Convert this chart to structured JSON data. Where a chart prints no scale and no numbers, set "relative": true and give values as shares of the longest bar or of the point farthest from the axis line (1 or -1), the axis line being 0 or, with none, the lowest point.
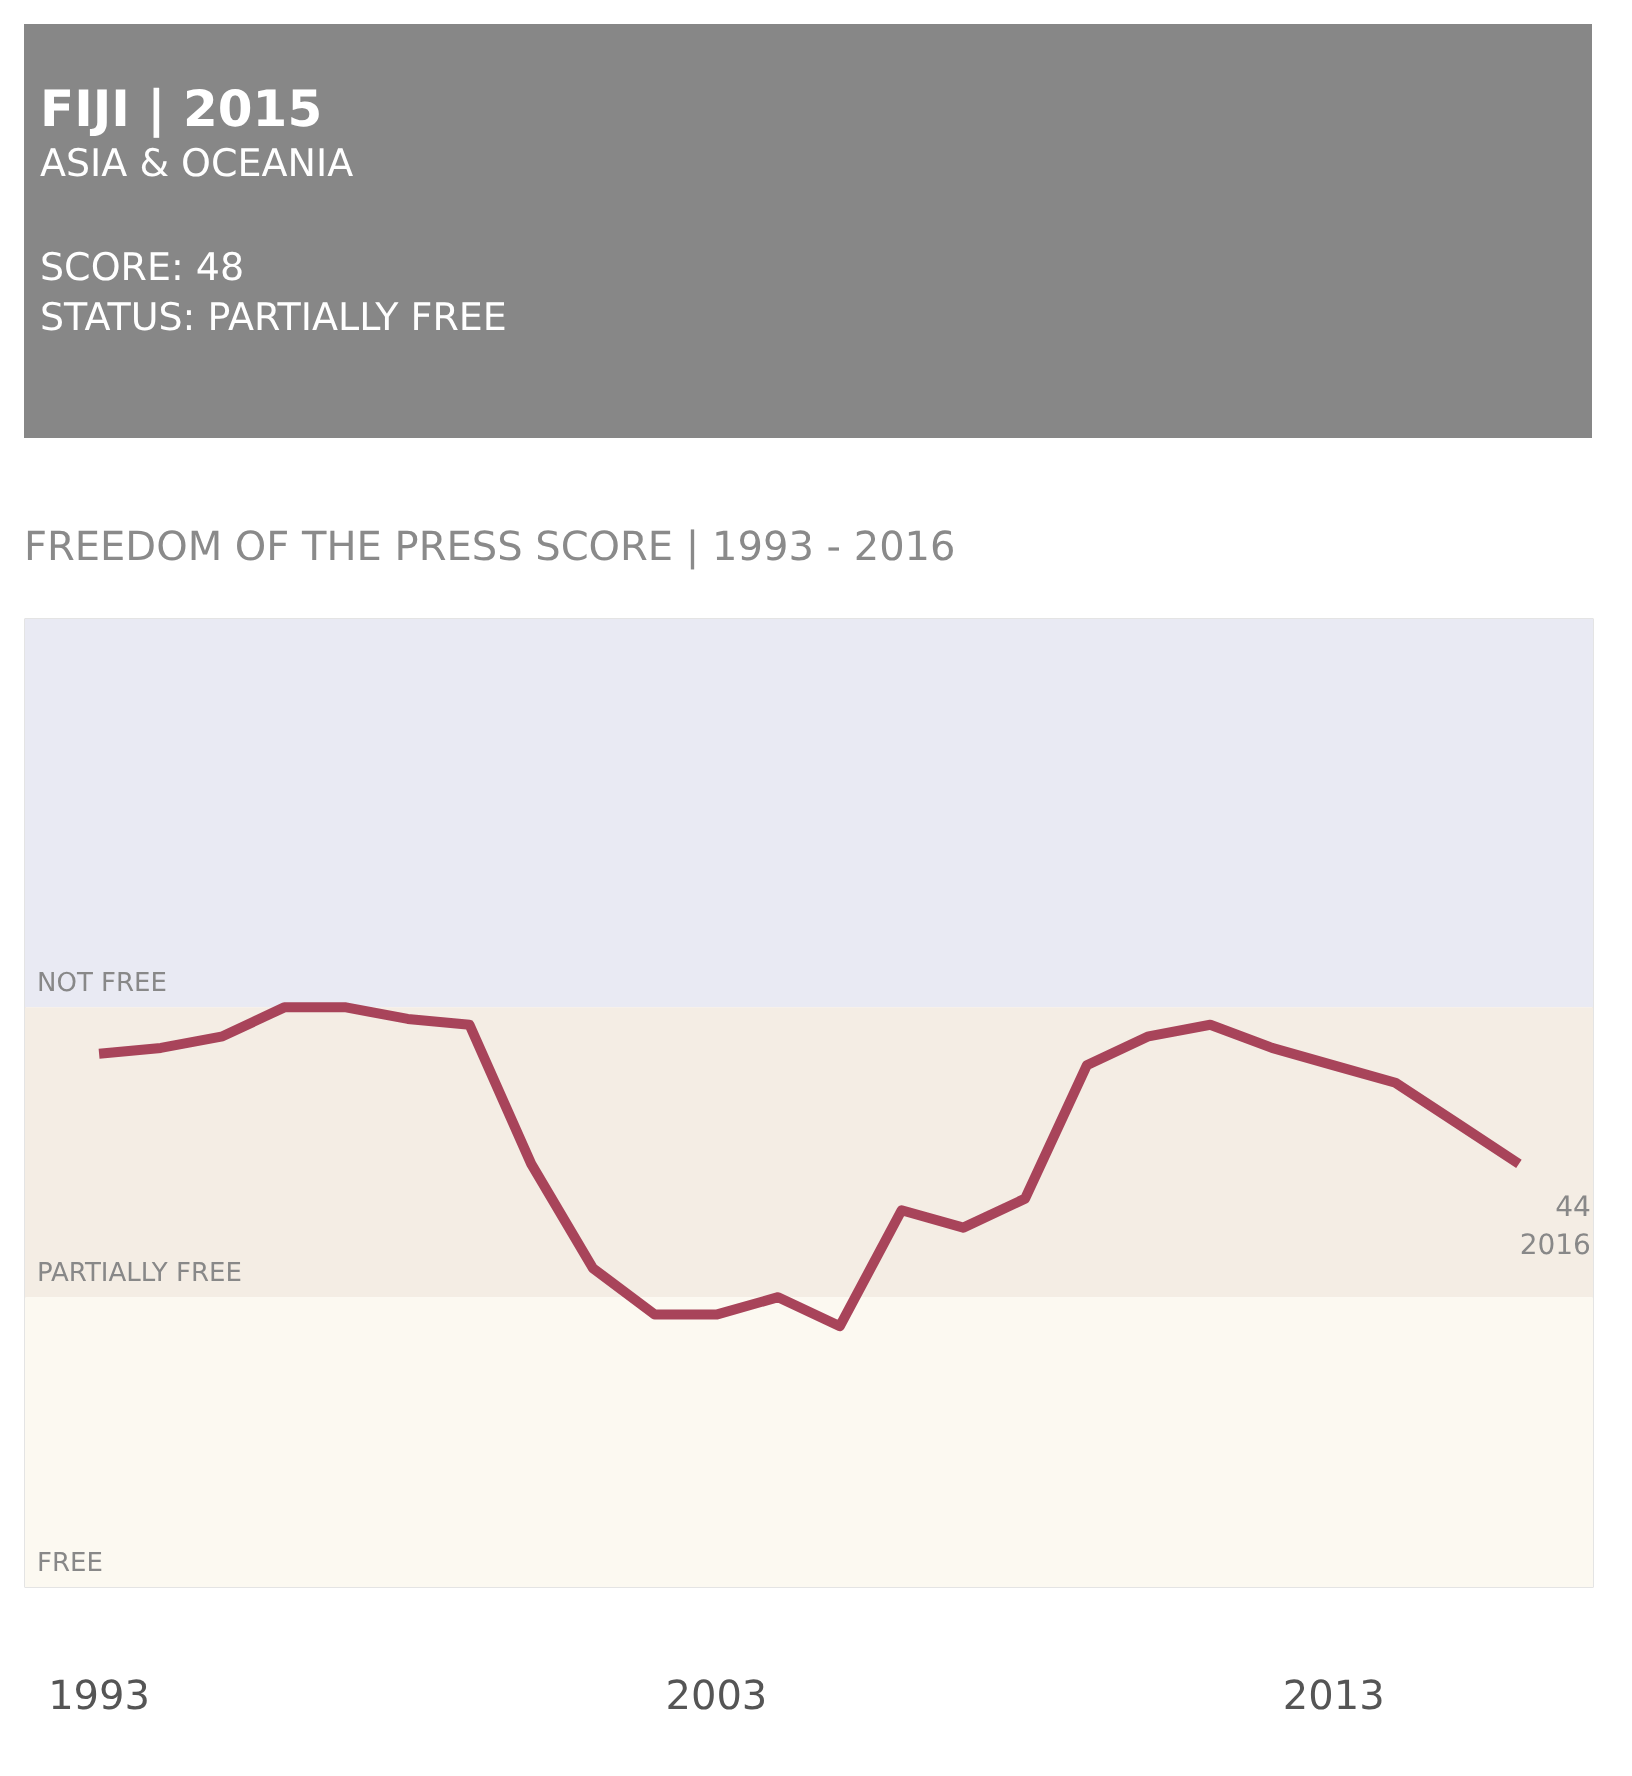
{
  "chart_data": {
    "type": "line",
    "title": "FIJI | 2015",
    "subtitle": "ASIA & OCEANIA",
    "annotations": [
      "SCORE: 48",
      "STATUS: PARTIALLY FREE",
      "FREEDOM OF THE PRESS SCORE | 1993 - 2016",
      {
        "text": "44\n2016",
        "x": 2016,
        "y": 0.73
      }
    ],
    "x": [
      1993,
      1994,
      1995,
      1996,
      1997,
      1998,
      1999,
      2000,
      2001,
      2002,
      2003,
      2004,
      2005,
      2006,
      2007,
      2008,
      2009,
      2010,
      2011,
      2012,
      2013,
      2014,
      2015,
      2016
    ],
    "series": [
      {
        "color": "#a8445a",
        "values": [
          0.92,
          0.93,
          0.95,
          1,
          1,
          0.98,
          0.97,
          0.73,
          0.55,
          0.47,
          0.47,
          0.5,
          0.45,
          0.65,
          0.62,
          0.67,
          0.9,
          0.95,
          0.97,
          0.93,
          0.9,
          0.87,
          0.8,
          0.73
        ]
      }
    ],
    "relative": true,
    "xlim": [
      1991.8,
      2017.2
    ],
    "xticks": [
      1993,
      2003,
      2013
    ],
    "tick_labels": "x",
    "marker": "none",
    "line_style": "solid",
    "bands": [
      {
        "axis": "y",
        "from": 1,
        "to": 1.67,
        "label": "NOT FREE",
        "color": "#e9eaf3"
      },
      {
        "axis": "y",
        "from": 0.5,
        "to": 1,
        "label": "PARTIALLY FREE",
        "color": "#f4ede4"
      },
      {
        "axis": "y",
        "from": 0,
        "to": 0.5,
        "label": "FREE",
        "color": "#fcf9f1"
      }
    ]
  }
}
